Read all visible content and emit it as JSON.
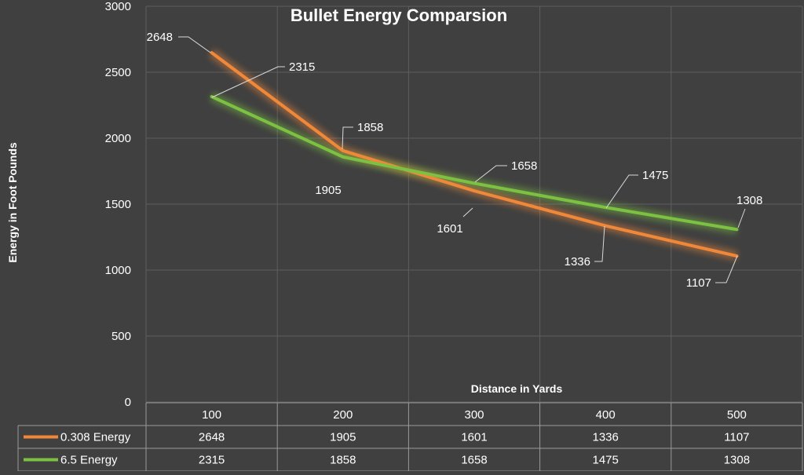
{
  "chart_data": {
    "type": "line",
    "title": "Bullet Energy Comparsion",
    "xlabel": "Distance in Yards",
    "ylabel": "Energy in Foot Pounds",
    "categories": [
      "100",
      "200",
      "300",
      "400",
      "500"
    ],
    "ylim": [
      0,
      3000
    ],
    "yticks": [
      "0",
      "500",
      "1000",
      "1500",
      "2000",
      "2500",
      "3000"
    ],
    "grid": true,
    "legend": "data-table",
    "series": [
      {
        "name": "0.308 Energy",
        "values": [
          2648,
          1905,
          1601,
          1336,
          1107
        ],
        "color": "#f0883a"
      },
      {
        "name": "6.5 Energy",
        "values": [
          2315,
          1858,
          1658,
          1475,
          1308
        ],
        "color": "#7cc142"
      }
    ],
    "table": {
      "rows": [
        {
          "label": "0.308 Energy",
          "values": [
            "2648",
            "1905",
            "1601",
            "1336",
            "1107"
          ]
        },
        {
          "label": "6.5 Energy",
          "values": [
            "2315",
            "1858",
            "1658",
            "1475",
            "1308"
          ]
        }
      ]
    }
  }
}
